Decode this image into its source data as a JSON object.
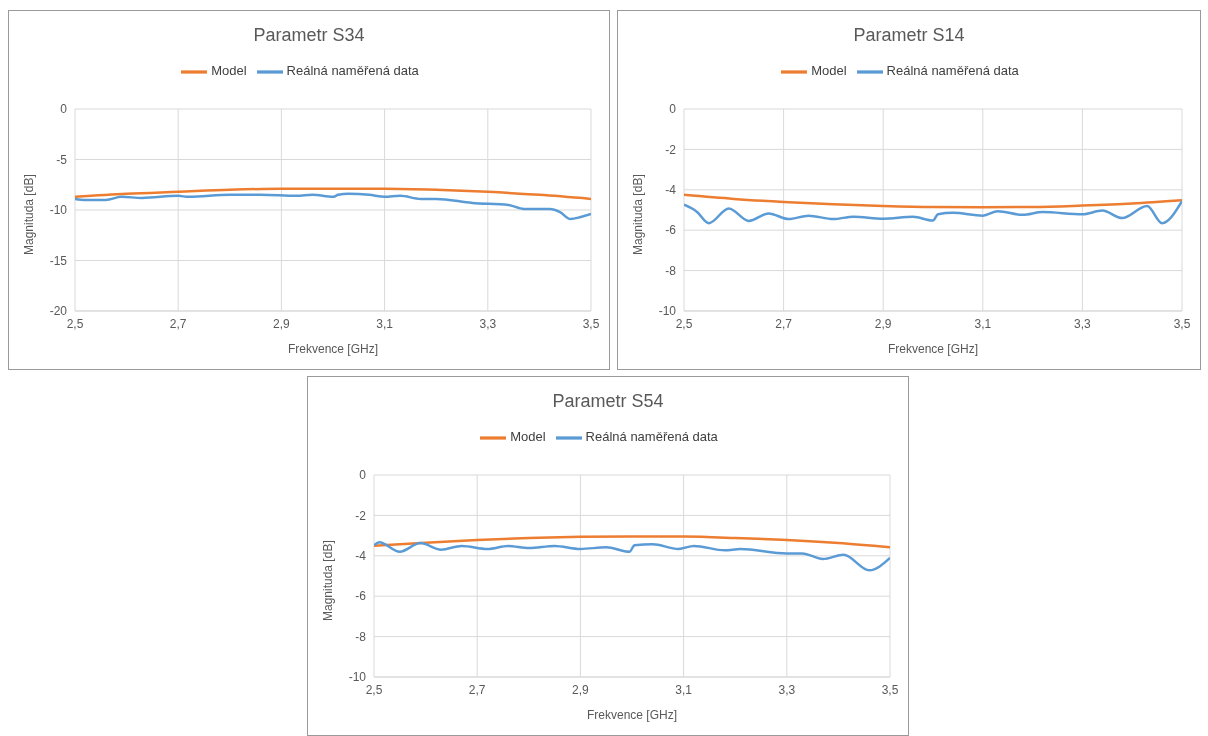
{
  "chart_data": [
    {
      "type": "line",
      "title": "Parametr S34",
      "xlabel": "Frekvence [GHz]",
      "ylabel": "Magnituda [dB]",
      "legend": "top",
      "grid": true,
      "marker": "none",
      "line_style": "solid",
      "xlim": [
        2.5,
        3.5
      ],
      "xticks": [
        {
          "value": 2.5,
          "label": "2,5"
        },
        {
          "value": 2.7,
          "label": "2,7"
        },
        {
          "value": 2.9,
          "label": "2,9"
        },
        {
          "value": 3.1,
          "label": "3,1"
        },
        {
          "value": 3.3,
          "label": "3,3"
        },
        {
          "value": 3.5,
          "label": "3,5"
        }
      ],
      "ylim": [
        -20,
        0
      ],
      "yticks": [
        -20,
        -15,
        -10,
        -5,
        0
      ],
      "series": [
        {
          "name": "Model",
          "color": "#ed7d31",
          "x": [
            2.5,
            2.6,
            2.7,
            2.8,
            2.9,
            3.0,
            3.1,
            3.2,
            3.3,
            3.4,
            3.5
          ],
          "values": [
            -8.7,
            -8.4,
            -8.2,
            -8.0,
            -7.9,
            -7.9,
            -7.9,
            -8.0,
            -8.2,
            -8.5,
            -8.9
          ]
        },
        {
          "name": "Reálná naměřená data",
          "color": "#5b9bd5",
          "x": [
            2.5,
            2.52,
            2.56,
            2.59,
            2.63,
            2.7,
            2.72,
            2.8,
            2.86,
            2.93,
            2.96,
            3.0,
            3.01,
            3.03,
            3.07,
            3.1,
            3.13,
            3.17,
            3.2,
            3.27,
            3.34,
            3.37,
            3.42,
            3.44,
            3.46,
            3.48,
            3.5
          ],
          "values": [
            -8.9,
            -9.0,
            -9.0,
            -8.7,
            -8.8,
            -8.6,
            -8.7,
            -8.5,
            -8.5,
            -8.6,
            -8.5,
            -8.7,
            -8.5,
            -8.4,
            -8.5,
            -8.7,
            -8.6,
            -8.9,
            -8.9,
            -9.3,
            -9.5,
            -9.9,
            -9.9,
            -10.2,
            -10.9,
            -10.7,
            -10.4
          ]
        }
      ]
    },
    {
      "type": "line",
      "title": "Parametr S14",
      "xlabel": "Frekvence [GHz]",
      "ylabel": "Magnituda [dB]",
      "legend": "top",
      "grid": true,
      "marker": "none",
      "line_style": "solid",
      "xlim": [
        2.5,
        3.5
      ],
      "xticks": [
        {
          "value": 2.5,
          "label": "2,5"
        },
        {
          "value": 2.7,
          "label": "2,7"
        },
        {
          "value": 2.9,
          "label": "2,9"
        },
        {
          "value": 3.1,
          "label": "3,1"
        },
        {
          "value": 3.3,
          "label": "3,3"
        },
        {
          "value": 3.5,
          "label": "3,5"
        }
      ],
      "ylim": [
        -10,
        0
      ],
      "yticks": [
        -10,
        -8,
        -6,
        -4,
        -2,
        0
      ],
      "series": [
        {
          "name": "Model",
          "color": "#ed7d31",
          "x": [
            2.5,
            2.6,
            2.7,
            2.8,
            2.9,
            3.0,
            3.1,
            3.2,
            3.3,
            3.4,
            3.5
          ],
          "values": [
            -4.25,
            -4.45,
            -4.6,
            -4.72,
            -4.8,
            -4.85,
            -4.86,
            -4.85,
            -4.78,
            -4.68,
            -4.52
          ]
        },
        {
          "name": "Reálná naměřená data",
          "color": "#5b9bd5",
          "x": [
            2.5,
            2.525,
            2.55,
            2.59,
            2.63,
            2.67,
            2.71,
            2.75,
            2.8,
            2.84,
            2.9,
            2.96,
            3.0,
            3.01,
            3.04,
            3.1,
            3.13,
            3.18,
            3.22,
            3.3,
            3.34,
            3.38,
            3.43,
            3.46,
            3.5
          ],
          "values": [
            -4.74,
            -5.07,
            -5.65,
            -4.92,
            -5.54,
            -5.17,
            -5.45,
            -5.28,
            -5.45,
            -5.33,
            -5.43,
            -5.34,
            -5.52,
            -5.21,
            -5.14,
            -5.28,
            -5.06,
            -5.24,
            -5.1,
            -5.21,
            -5.03,
            -5.4,
            -4.8,
            -5.65,
            -4.56
          ]
        }
      ]
    },
    {
      "type": "line",
      "title": "Parametr S54",
      "xlabel": "Frekvence [GHz]",
      "ylabel": "Magnituda [dB]",
      "legend": "top",
      "grid": true,
      "marker": "none",
      "line_style": "solid",
      "xlim": [
        2.5,
        3.5
      ],
      "xticks": [
        {
          "value": 2.5,
          "label": "2,5"
        },
        {
          "value": 2.7,
          "label": "2,7"
        },
        {
          "value": 2.9,
          "label": "2,9"
        },
        {
          "value": 3.1,
          "label": "3,1"
        },
        {
          "value": 3.3,
          "label": "3,3"
        },
        {
          "value": 3.5,
          "label": "3,5"
        }
      ],
      "ylim": [
        -10,
        0
      ],
      "yticks": [
        -10,
        -8,
        -6,
        -4,
        -2,
        0
      ],
      "series": [
        {
          "name": "Model",
          "color": "#ed7d31",
          "x": [
            2.5,
            2.6,
            2.7,
            2.8,
            2.9,
            3.0,
            3.1,
            3.2,
            3.3,
            3.4,
            3.5
          ],
          "values": [
            -3.5,
            -3.35,
            -3.22,
            -3.12,
            -3.06,
            -3.04,
            -3.05,
            -3.12,
            -3.22,
            -3.37,
            -3.58
          ]
        },
        {
          "name": "Reálná naměřená data",
          "color": "#5b9bd5",
          "x": [
            2.5,
            2.51,
            2.55,
            2.59,
            2.63,
            2.67,
            2.72,
            2.76,
            2.8,
            2.85,
            2.9,
            2.95,
            2.995,
            3.005,
            3.04,
            3.09,
            3.12,
            3.18,
            3.21,
            3.3,
            3.33,
            3.37,
            3.41,
            3.46,
            3.5
          ],
          "values": [
            -3.48,
            -3.33,
            -3.8,
            -3.37,
            -3.7,
            -3.51,
            -3.66,
            -3.51,
            -3.62,
            -3.51,
            -3.66,
            -3.58,
            -3.8,
            -3.48,
            -3.43,
            -3.66,
            -3.51,
            -3.73,
            -3.66,
            -3.88,
            -3.88,
            -4.16,
            -3.95,
            -4.72,
            -4.1
          ]
        }
      ]
    }
  ]
}
